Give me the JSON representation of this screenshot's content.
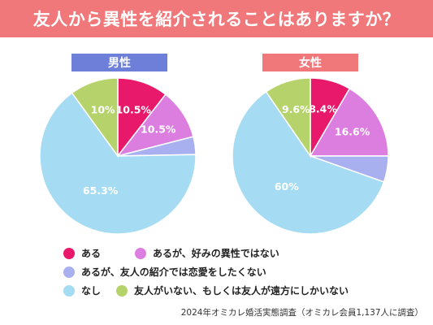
{
  "title": "友人から異性を紹介されることはありますか？",
  "colors": {
    "title_bg": "#f0787a",
    "male_tag": "#6d7fd9",
    "female_tag": "#f0787a"
  },
  "chart_data": [
    {
      "type": "pie",
      "title": "男性",
      "slices": [
        {
          "name": "ある",
          "value": 10.5,
          "label": "10.5%",
          "color": "#e8186a"
        },
        {
          "name": "あるが、好みの異性ではない",
          "value": 10.5,
          "label": "10.5%",
          "color": "#dc7ee0"
        },
        {
          "name": "あるが、友人の紹介では恋愛をしたくない",
          "value": 3.7,
          "label": "",
          "color": "#a9b0f0"
        },
        {
          "name": "なし",
          "value": 65.3,
          "label": "65.3%",
          "color": "#a6dcf3"
        },
        {
          "name": "友人がいない、もしくは友人が遠方にしかいない",
          "value": 10.0,
          "label": "10%",
          "color": "#b5d36a"
        }
      ]
    },
    {
      "type": "pie",
      "title": "女性",
      "slices": [
        {
          "name": "ある",
          "value": 8.4,
          "label": "8.4%",
          "color": "#e8186a"
        },
        {
          "name": "あるが、好みの異性ではない",
          "value": 16.6,
          "label": "16.6%",
          "color": "#dc7ee0"
        },
        {
          "name": "あるが、友人の紹介では恋愛をしたくない",
          "value": 5.4,
          "label": "",
          "color": "#a9b0f0"
        },
        {
          "name": "なし",
          "value": 60,
          "label": "60%",
          "color": "#a6dcf3"
        },
        {
          "name": "友人がいない、もしくは友人が遠方にしかいない",
          "value": 9.6,
          "label": "9.6%",
          "color": "#b5d36a"
        }
      ]
    }
  ],
  "legend": [
    {
      "label": "ある",
      "color": "#e8186a"
    },
    {
      "label": "あるが、好みの異性ではない",
      "color": "#dc7ee0"
    },
    {
      "label": "あるが、友人の紹介では恋愛をしたくない",
      "color": "#a9b0f0"
    },
    {
      "label": "なし",
      "color": "#a6dcf3"
    },
    {
      "label": "友人がいない、もしくは友人が遠方にしかいない",
      "color": "#b5d36a"
    }
  ],
  "source": "2024年オミカレ婚活実態調査（オミカレ会員1,137人に調査）"
}
